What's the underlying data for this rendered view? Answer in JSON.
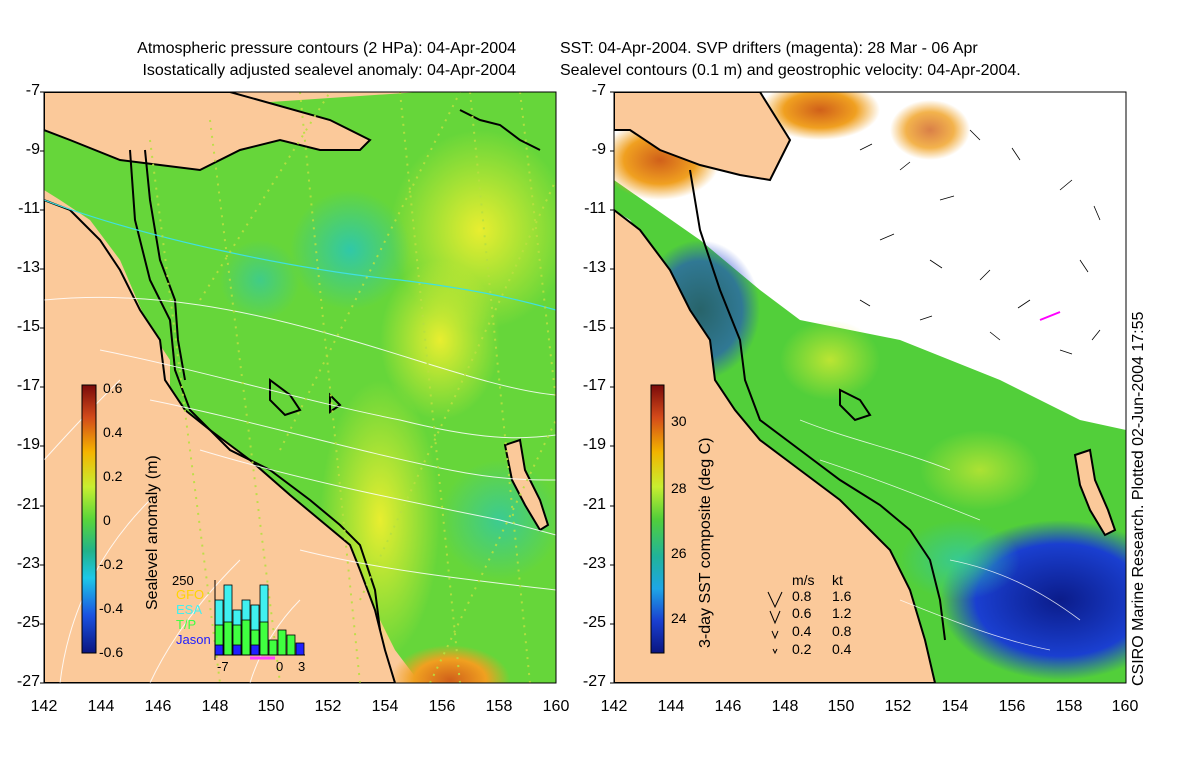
{
  "left_panel": {
    "title_line1": "Atmospheric pressure contours (2 HPa): 04-Apr-2004",
    "title_line2": "Isostatically adjusted sealevel anomaly: 04-Apr-2004",
    "colorbar_label": "Sealevel anomaly (m)",
    "colorbar_ticks": [
      "0.6",
      "0.4",
      "0.2",
      "0",
      "-0.2",
      "-0.4",
      "-0.6"
    ],
    "colorbar_values": [
      0.6,
      0.4,
      0.2,
      0,
      -0.2,
      -0.4,
      -0.6
    ],
    "inset": {
      "top_value": "250",
      "legend": [
        {
          "name": "GFO",
          "color": "#ffd400"
        },
        {
          "name": "ESA",
          "color": "#40f0f0"
        },
        {
          "name": "T/P",
          "color": "#40ff40"
        },
        {
          "name": "Jason",
          "color": "#2020ff"
        }
      ],
      "xticks": [
        "-7",
        "0",
        "3"
      ]
    }
  },
  "right_panel": {
    "title_line1": "SST: 04-Apr-2004. SVP drifters (magenta): 28 Mar - 06 Apr",
    "title_line2": "Sealevel contours (0.1 m) and geostrophic velocity: 04-Apr-2004.",
    "colorbar_label": "3-day SST composite (deg C)",
    "colorbar_ticks": [
      "30",
      "28",
      "26",
      "24"
    ],
    "colorbar_values": [
      30,
      28,
      26,
      24
    ],
    "velocity_legend": {
      "header_ms": "m/s",
      "header_kt": "kt",
      "rows": [
        {
          "ms": "0.8",
          "kt": "1.6"
        },
        {
          "ms": "0.6",
          "kt": "1.2"
        },
        {
          "ms": "0.4",
          "kt": "0.8"
        },
        {
          "ms": "0.2",
          "kt": "0.4"
        }
      ]
    }
  },
  "axes": {
    "y_ticks": [
      "-7",
      "-9",
      "-11",
      "-13",
      "-15",
      "-17",
      "-19",
      "-21",
      "-23",
      "-25",
      "-27"
    ],
    "x_ticks": [
      "142",
      "144",
      "146",
      "148",
      "150",
      "152",
      "154",
      "156",
      "158",
      "160"
    ]
  },
  "credit": "CSIRO Marine Research. Plotted 02-Jun-2004 17:55",
  "colors": {
    "land": "#fbc99a",
    "ocean_green": "#66d63a",
    "light_green": "#9be53a",
    "yellow": "#ddee33",
    "cyan": "#2fc7a8",
    "blue": "#1a3fd0",
    "navy": "#0b1c8a",
    "drifter": "#ff00ff"
  }
}
